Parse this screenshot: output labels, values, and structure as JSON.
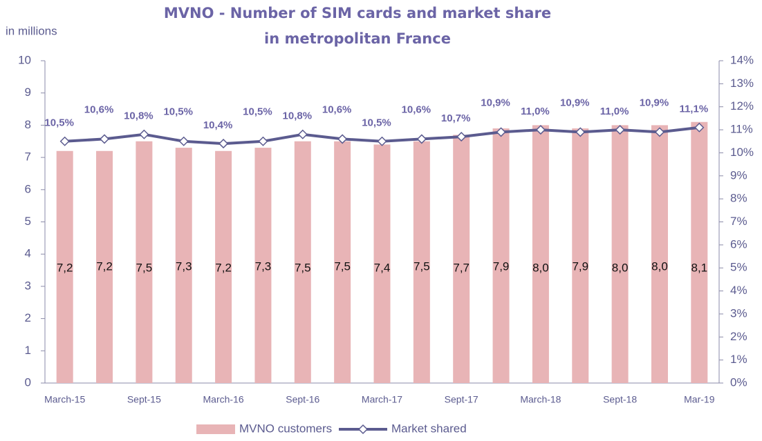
{
  "chart_data": {
    "type": "bar_line",
    "title": [
      "MVNO - Number of SIM cards and market share",
      "in metropolitan France"
    ],
    "y_label": "in millions",
    "categories": [
      "March-15",
      null,
      "Sept-15",
      null,
      "March-16",
      null,
      "Sept-16",
      null,
      "March-17",
      null,
      "Sept-17",
      null,
      "March-18",
      null,
      "Sept-18",
      null,
      "Mar-19"
    ],
    "ylim": [
      0,
      10
    ],
    "yticks": [
      0,
      1,
      2,
      3,
      4,
      5,
      6,
      7,
      8,
      9,
      10
    ],
    "y2lim": [
      0,
      14
    ],
    "y2ticks": [
      {
        "value": 0,
        "label": "0%"
      },
      {
        "value": 1,
        "label": "1%"
      },
      {
        "value": 2,
        "label": "2%"
      },
      {
        "value": 3,
        "label": "3%"
      },
      {
        "value": 4,
        "label": "4%"
      },
      {
        "value": 5,
        "label": "5%"
      },
      {
        "value": 6,
        "label": "6%"
      },
      {
        "value": 7,
        "label": "7%"
      },
      {
        "value": 8,
        "label": "8%"
      },
      {
        "value": 9,
        "label": "9%"
      },
      {
        "value": 10,
        "label": "10%"
      },
      {
        "value": 11,
        "label": "11%"
      },
      {
        "value": 12,
        "label": "12%"
      },
      {
        "value": 13,
        "label": "13%"
      },
      {
        "value": 14,
        "label": "14%"
      }
    ],
    "series": [
      {
        "name": "MVNO customers",
        "type": "bar",
        "color": "#e8b4b6",
        "values": [
          7.2,
          7.2,
          7.5,
          7.3,
          7.2,
          7.3,
          7.5,
          7.5,
          7.4,
          7.5,
          7.7,
          7.9,
          8.0,
          7.9,
          8.0,
          8.0,
          8.1
        ],
        "value_labels": [
          "7,2",
          "7,2",
          "7,5",
          "7,3",
          "7,2",
          "7,3",
          "7,5",
          "7,5",
          "7,4",
          "7,5",
          "7,7",
          "7,9",
          "8,0",
          "7,9",
          "8,0",
          "8,0",
          "8,1"
        ]
      },
      {
        "name": "Market shared",
        "type": "line",
        "axis": "y2",
        "color": "#5b5b8f",
        "values": [
          10.5,
          10.6,
          10.8,
          10.5,
          10.4,
          10.5,
          10.8,
          10.6,
          10.5,
          10.6,
          10.7,
          10.9,
          11.0,
          10.9,
          11.0,
          10.9,
          11.1
        ],
        "value_labels": [
          "10,5%",
          "10,6%",
          "10,8%",
          "10,5%",
          "10,4%",
          "10,5%",
          "10,8%",
          "10,6%",
          "10,5%",
          "10,6%",
          "10,7%",
          "10,9%",
          "11,0%",
          "10,9%",
          "11,0%",
          "10,9%",
          "11,1%"
        ]
      }
    ]
  }
}
